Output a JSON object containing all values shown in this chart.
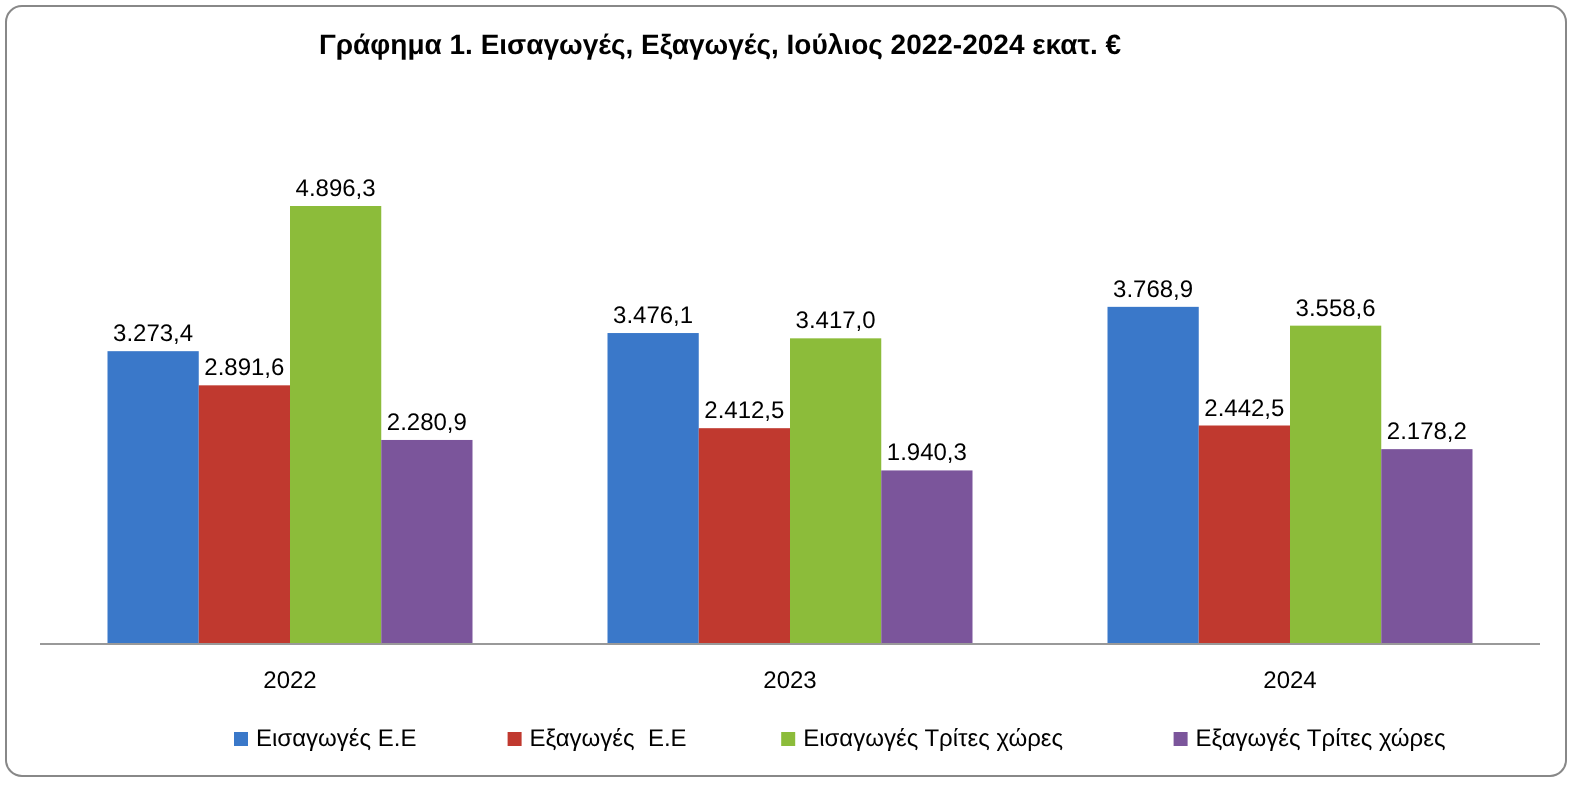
{
  "chart_data": {
    "type": "bar",
    "title": "Γράφημα 1. Εισαγωγές, Εξαγωγές, Ιούλιος 2022-2024 εκατ. €",
    "categories": [
      "2022",
      "2023",
      "2024"
    ],
    "series": [
      {
        "name": "Εισαγωγές Ε.Ε",
        "color": "#3a78c9",
        "values": [
          3273.4,
          3476.1,
          3768.9
        ],
        "value_labels": [
          "3.273,4",
          "3.476,1",
          "3.768,9"
        ]
      },
      {
        "name": "Εξαγωγές  Ε.Ε",
        "color": "#c0392f",
        "values": [
          2891.6,
          2412.5,
          2442.5
        ],
        "value_labels": [
          "2.891,6",
          "2.412,5",
          "2.442,5"
        ]
      },
      {
        "name": "Εισαγωγές Τρίτες χώρες",
        "color": "#8cbc3a",
        "values": [
          4896.3,
          3417.0,
          3558.6
        ],
        "value_labels": [
          "4.896,3",
          "3.417,0",
          "3.558,6"
        ]
      },
      {
        "name": "Εξαγωγές Τρίτες χώρες",
        "color": "#7b559b",
        "values": [
          2280.9,
          1940.3,
          2178.2
        ],
        "value_labels": [
          "2.280,9",
          "1.940,3",
          "2.178,2"
        ]
      }
    ],
    "legend": "bottom"
  }
}
